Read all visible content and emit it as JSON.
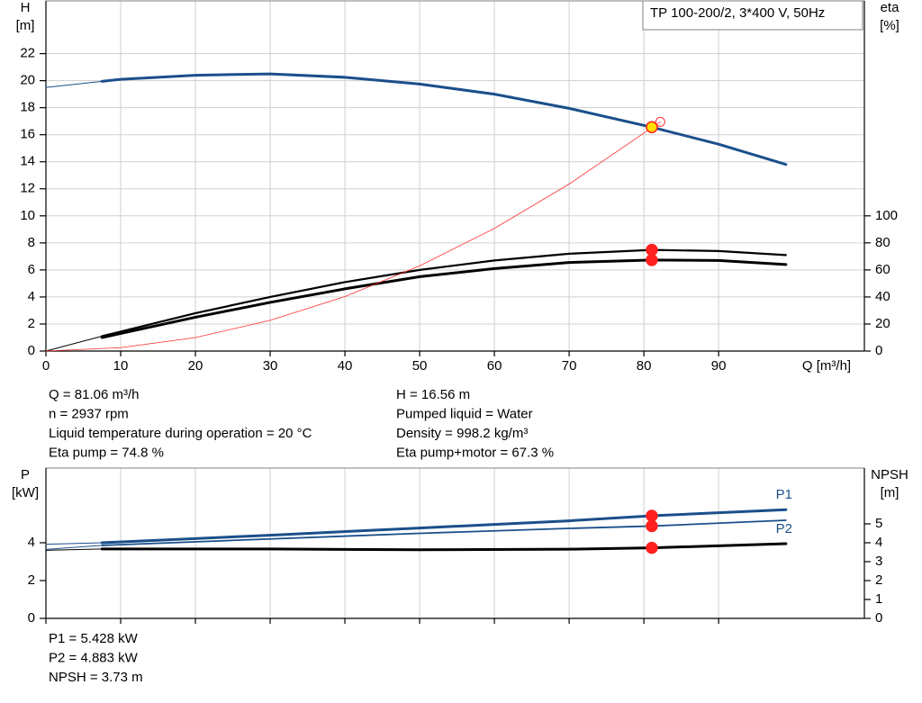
{
  "chart_data": [
    {
      "type": "line",
      "title": "TP 100-200/2, 3*400 V, 50Hz",
      "y_label": "H",
      "y_unit": "[m]",
      "y2_label": "eta",
      "y2_unit": "[%]",
      "x_label": "Q [m³/h]",
      "xlim": [
        0,
        109.5
      ],
      "xticks": [
        0,
        10,
        20,
        30,
        40,
        50,
        60,
        70,
        80,
        90
      ],
      "x_tick_labels": true,
      "ylim": [
        0,
        25.9
      ],
      "yticks": [
        0,
        2,
        4,
        6,
        8,
        10,
        12,
        14,
        16,
        18,
        20,
        22
      ],
      "y2lim": [
        0,
        259
      ],
      "y2ticks": [
        0,
        20,
        40,
        60,
        80,
        100
      ],
      "grid": "both",
      "series": [
        {
          "color": "#1a4f8a",
          "width": 1,
          "axis": "y",
          "x": [
            0,
            7.5
          ],
          "values": [
            19.5,
            19.95
          ]
        },
        {
          "color": "#1a4f8a",
          "width": 3,
          "axis": "y",
          "x": [
            7.5,
            10,
            20,
            30,
            40,
            50,
            60,
            70,
            81.06,
            90,
            99
          ],
          "values": [
            19.95,
            20.1,
            20.4,
            20.5,
            20.25,
            19.75,
            19.0,
            17.95,
            16.56,
            15.3,
            13.8
          ]
        },
        {
          "color": "#000000",
          "width": 1,
          "axis": "y2",
          "x": [
            0,
            7.5
          ],
          "values": [
            0,
            11
          ]
        },
        {
          "color": "#000000",
          "width": 2.2,
          "axis": "y2",
          "x": [
            7.5,
            20,
            30,
            40,
            50,
            60,
            70,
            81.06,
            90,
            99
          ],
          "values": [
            11,
            28,
            40,
            51,
            60,
            67,
            72,
            74.8,
            74,
            71
          ]
        },
        {
          "color": "#000000",
          "width": 3,
          "axis": "y2",
          "x": [
            7.5,
            20,
            30,
            40,
            50,
            60,
            70,
            81.06,
            90,
            99
          ],
          "values": [
            10,
            25,
            36,
            46,
            55,
            61,
            65.5,
            67.3,
            67,
            64
          ]
        },
        {
          "color": "#ff3030",
          "width": 0.8,
          "axis": "y",
          "x": [
            0,
            10,
            20,
            30,
            40,
            50,
            60,
            70,
            82.2
          ],
          "values": [
            0,
            0.25,
            1.0,
            2.27,
            4.03,
            6.3,
            9.07,
            12.35,
            16.95
          ]
        }
      ],
      "points": [
        {
          "x": 82.2,
          "y": 16.95,
          "axis": "y",
          "color": "#ff3030",
          "style": "open"
        },
        {
          "x": 81.06,
          "y": 16.56,
          "axis": "y",
          "color": "#ffe000",
          "style": "filled"
        },
        {
          "x": 81.06,
          "y": 74.8,
          "axis": "y2",
          "color": "#ff2020",
          "style": "filled"
        },
        {
          "x": 81.06,
          "y": 67.3,
          "axis": "y2",
          "color": "#ff2020",
          "style": "filled"
        }
      ],
      "annotations": [
        [
          "Q = 81.06 m³/h",
          "n = 2937 rpm",
          "Liquid temperature during operation = 20 °C",
          "Eta pump = 74.8 %"
        ],
        [
          "H = 16.56 m",
          "Pumped liquid = Water",
          "Density = 998.2 kg/m³",
          "Eta pump+motor = 67.3 %"
        ]
      ]
    },
    {
      "type": "line",
      "y_label": "P",
      "y_unit": "[kW]",
      "y2_label": "NPSH",
      "y2_unit": "[m]",
      "xlim": [
        0,
        109.5
      ],
      "xticks": [
        0,
        10,
        20,
        30,
        40,
        50,
        60,
        70,
        80,
        90
      ],
      "x_tick_labels": false,
      "ylim": [
        0,
        7.95
      ],
      "yticks": [
        0,
        2,
        4
      ],
      "y2lim": [
        0,
        7.95
      ],
      "y2ticks": [
        0,
        1,
        2,
        3,
        4,
        5
      ],
      "grid": "x",
      "series": [
        {
          "color": "#1a4f8a",
          "width": 1,
          "axis": "y",
          "x": [
            0,
            7.5
          ],
          "values": [
            3.92,
            4.0
          ]
        },
        {
          "name": "P1",
          "color": "#1a4f8a",
          "width": 3,
          "axis": "y",
          "x": [
            7.5,
            30,
            50,
            70,
            81.06,
            99
          ],
          "values": [
            4.0,
            4.4,
            4.78,
            5.16,
            5.428,
            5.75
          ]
        },
        {
          "color": "#1a4f8a",
          "width": 1,
          "axis": "y",
          "x": [
            0,
            7.5
          ],
          "values": [
            3.65,
            3.86
          ]
        },
        {
          "name": "P2",
          "color": "#1a4f8a",
          "width": 1.8,
          "axis": "y",
          "x": [
            7.5,
            30,
            50,
            70,
            81.06,
            99
          ],
          "values": [
            3.86,
            4.2,
            4.5,
            4.76,
            4.883,
            5.19
          ]
        },
        {
          "color": "#000000",
          "width": 1,
          "axis": "y2",
          "x": [
            0,
            7.5
          ],
          "values": [
            3.6,
            3.67
          ]
        },
        {
          "color": "#000000",
          "width": 3,
          "axis": "y2",
          "x": [
            7.5,
            30,
            50,
            70,
            81.06,
            99
          ],
          "values": [
            3.67,
            3.67,
            3.63,
            3.66,
            3.73,
            3.95
          ]
        }
      ],
      "points": [
        {
          "x": 81.06,
          "y": 5.428,
          "axis": "y",
          "color": "#ff2020",
          "style": "filled"
        },
        {
          "x": 81.06,
          "y": 4.883,
          "axis": "y",
          "color": "#ff2020",
          "style": "filled"
        },
        {
          "x": 81.06,
          "y": 3.73,
          "axis": "y2",
          "color": "#ff2020",
          "style": "filled"
        }
      ],
      "annotations": [
        [
          "P1 = 5.428 kW",
          "P2 = 4.883 kW",
          "NPSH = 3.73 m"
        ]
      ]
    }
  ]
}
